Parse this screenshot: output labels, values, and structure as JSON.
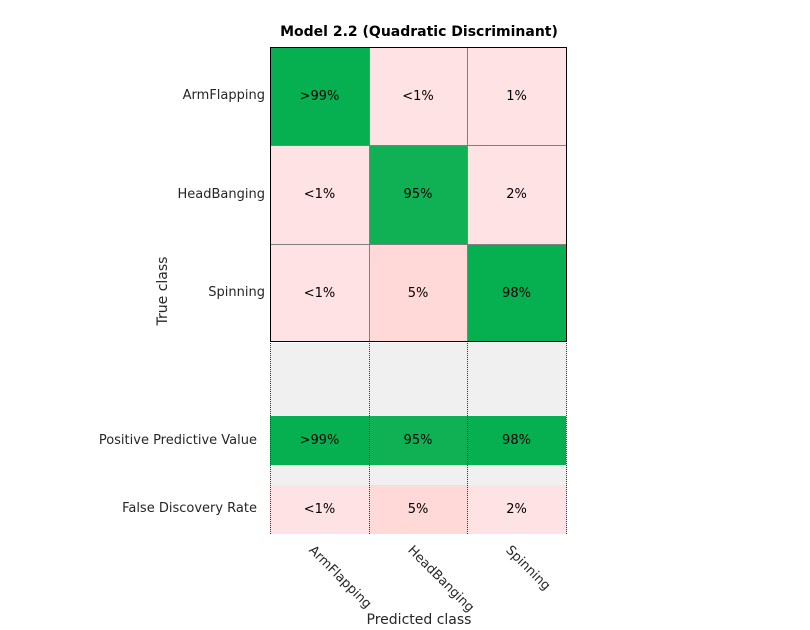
{
  "chart_data": {
    "type": "heatmap",
    "title": "Model 2.2 (Quadratic Discriminant)",
    "xlabel": "Predicted class",
    "ylabel": "True class",
    "classes": [
      "ArmFlapping",
      "HeadBanging",
      "Spinning"
    ],
    "matrix": [
      [
        ">99%",
        "<1%",
        "1%"
      ],
      [
        "<1%",
        "95%",
        "2%"
      ],
      [
        "<1%",
        "5%",
        "98%"
      ]
    ],
    "matrix_values": [
      [
        99.5,
        0.5,
        1
      ],
      [
        0.5,
        95,
        2
      ],
      [
        0.5,
        5,
        98
      ]
    ],
    "summary_rows": [
      {
        "label": "Positive Predictive Value",
        "values": [
          ">99%",
          "95%",
          "98%"
        ],
        "numeric": [
          99.5,
          95,
          98
        ]
      },
      {
        "label": "False Discovery Rate",
        "values": [
          "<1%",
          "5%",
          "2%"
        ],
        "numeric": [
          0.5,
          5,
          2
        ]
      }
    ],
    "colors": {
      "good": "#06b050",
      "good_mid": "#10b055",
      "bad_light": "#ffe2e3",
      "bad_mid": "#ffd8d8",
      "summary_bg": "#f0f0f0"
    }
  }
}
